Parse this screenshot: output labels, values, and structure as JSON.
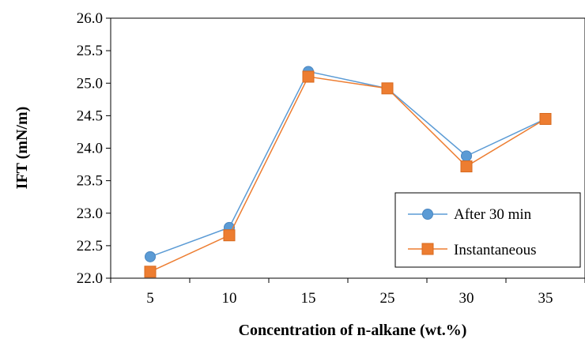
{
  "chart_data": {
    "type": "line",
    "xlabel": "Concentration of n-alkane (wt.%)",
    "ylabel": "IFT (mN/m)",
    "categories": [
      "5",
      "10",
      "15",
      "25",
      "30",
      "35"
    ],
    "ylim": [
      22.0,
      26.0
    ],
    "yticks": [
      "22.0",
      "22.5",
      "23.0",
      "23.5",
      "24.0",
      "24.5",
      "25.0",
      "25.5",
      "26.0"
    ],
    "grid": false,
    "legend_position": "bottom-right",
    "series": [
      {
        "name": "After 30 min",
        "marker": "circle",
        "color": "#5B9BD5",
        "values": [
          22.33,
          22.78,
          25.18,
          24.92,
          23.88,
          24.45
        ]
      },
      {
        "name": "Instantaneous",
        "marker": "square",
        "color": "#ED7D31",
        "values": [
          22.1,
          22.66,
          25.1,
          24.92,
          23.72,
          24.45
        ]
      }
    ]
  }
}
